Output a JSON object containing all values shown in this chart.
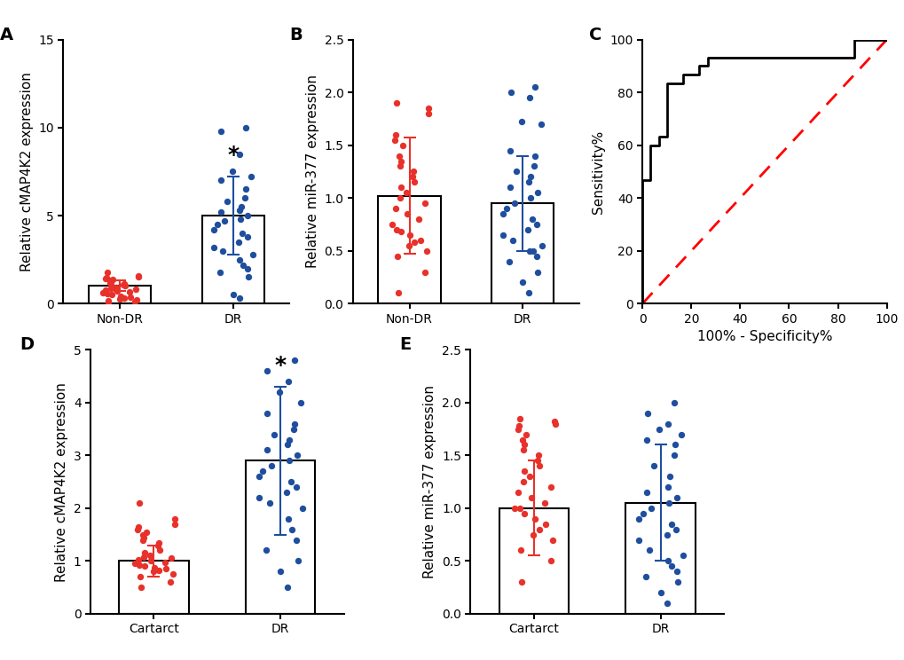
{
  "panel_A": {
    "ylabel": "Relative cMAP4K2 expression",
    "categories": [
      "Non-DR",
      "DR"
    ],
    "bar_means": [
      1.0,
      5.0
    ],
    "bar_errors": [
      0.3,
      2.2
    ],
    "ylim": [
      0,
      15
    ],
    "yticks": [
      0,
      5,
      10,
      15
    ],
    "colors": [
      "#E8312A",
      "#1F4E9E"
    ],
    "star_text": "*",
    "nondr_dots": [
      0.05,
      0.1,
      0.15,
      0.2,
      0.25,
      0.3,
      0.35,
      0.4,
      0.5,
      0.55,
      0.6,
      0.65,
      0.7,
      0.75,
      0.8,
      0.85,
      0.9,
      0.95,
      1.0,
      1.05,
      1.1,
      1.15,
      1.2,
      1.3,
      1.35,
      1.4,
      1.45,
      1.5,
      1.55,
      1.8
    ],
    "dr_dots": [
      0.3,
      0.5,
      1.5,
      1.8,
      2.0,
      2.2,
      2.5,
      2.8,
      3.0,
      3.2,
      3.5,
      3.8,
      4.0,
      4.2,
      4.5,
      4.7,
      4.8,
      5.0,
      5.2,
      5.3,
      5.5,
      5.8,
      6.0,
      6.5,
      7.0,
      7.2,
      7.5,
      8.5,
      9.8,
      10.0
    ]
  },
  "panel_B": {
    "ylabel": "Relative miR-377 expression",
    "categories": [
      "Non-DR",
      "DR"
    ],
    "bar_means": [
      1.02,
      0.95
    ],
    "bar_errors": [
      0.55,
      0.45
    ],
    "ylim": [
      0.0,
      2.5
    ],
    "yticks": [
      0.0,
      0.5,
      1.0,
      1.5,
      2.0,
      2.5
    ],
    "colors": [
      "#E8312A",
      "#1F4E9E"
    ],
    "nondr_dots": [
      0.1,
      0.3,
      0.45,
      0.5,
      0.55,
      0.58,
      0.6,
      0.65,
      0.68,
      0.7,
      0.75,
      0.8,
      0.85,
      0.9,
      0.95,
      1.0,
      1.05,
      1.1,
      1.15,
      1.2,
      1.25,
      1.3,
      1.35,
      1.4,
      1.5,
      1.55,
      1.6,
      1.8,
      1.85,
      1.9
    ],
    "dr_dots": [
      0.1,
      0.2,
      0.3,
      0.4,
      0.45,
      0.5,
      0.5,
      0.55,
      0.6,
      0.65,
      0.7,
      0.75,
      0.8,
      0.85,
      0.9,
      0.95,
      1.0,
      1.05,
      1.1,
      1.15,
      1.2,
      1.25,
      1.3,
      1.4,
      1.45,
      1.7,
      1.72,
      1.95,
      2.0,
      2.05
    ]
  },
  "panel_C": {
    "xlabel": "100% - Specificity%",
    "ylabel": "Sensitivity%",
    "roc_x": [
      0,
      0,
      3.3,
      3.3,
      6.7,
      6.7,
      10.0,
      10.0,
      16.7,
      16.7,
      23.3,
      23.3,
      26.7,
      26.7,
      30.0,
      86.7,
      86.7,
      100,
      100
    ],
    "roc_y": [
      0,
      46.7,
      46.7,
      60.0,
      60.0,
      63.3,
      63.3,
      83.3,
      83.3,
      86.7,
      86.7,
      90.0,
      90.0,
      93.3,
      93.3,
      93.3,
      100,
      100,
      100
    ],
    "xlim": [
      0,
      100
    ],
    "ylim": [
      0,
      100
    ],
    "xticks": [
      0,
      20,
      40,
      60,
      80,
      100
    ],
    "yticks": [
      0,
      20,
      40,
      60,
      80,
      100
    ]
  },
  "panel_D": {
    "ylabel": "Relative cMAP4K2 expression",
    "categories": [
      "Cartarct",
      "DR"
    ],
    "bar_means": [
      1.0,
      2.9
    ],
    "bar_errors": [
      0.3,
      1.4
    ],
    "ylim": [
      0,
      5
    ],
    "yticks": [
      0,
      1,
      2,
      3,
      4,
      5
    ],
    "colors": [
      "#E8312A",
      "#1F4E9E"
    ],
    "star_text": "*",
    "cat_dots": [
      0.5,
      0.6,
      0.7,
      0.75,
      0.8,
      0.82,
      0.85,
      0.88,
      0.9,
      0.92,
      0.95,
      0.98,
      1.0,
      1.02,
      1.05,
      1.08,
      1.1,
      1.15,
      1.2,
      1.3,
      1.35,
      1.4,
      1.45,
      1.5,
      1.55,
      1.6,
      1.65,
      1.7,
      1.8,
      2.1
    ],
    "dr_dots": [
      0.5,
      0.8,
      1.0,
      1.2,
      1.4,
      1.6,
      1.8,
      2.0,
      2.1,
      2.2,
      2.3,
      2.4,
      2.5,
      2.6,
      2.7,
      2.8,
      2.9,
      3.0,
      3.1,
      3.2,
      3.3,
      3.4,
      3.5,
      3.6,
      3.8,
      4.0,
      4.2,
      4.4,
      4.6,
      4.8
    ]
  },
  "panel_E": {
    "ylabel": "Relative miR-377 expression",
    "categories": [
      "Cartarct",
      "DR"
    ],
    "bar_means": [
      1.0,
      1.05
    ],
    "bar_errors": [
      0.45,
      0.55
    ],
    "ylim": [
      0.0,
      2.5
    ],
    "yticks": [
      0.0,
      0.5,
      1.0,
      1.5,
      2.0,
      2.5
    ],
    "colors": [
      "#E8312A",
      "#1F4E9E"
    ],
    "cat_dots": [
      0.3,
      0.5,
      0.6,
      0.7,
      0.75,
      0.8,
      0.85,
      0.9,
      0.95,
      1.0,
      1.0,
      1.05,
      1.1,
      1.15,
      1.2,
      1.25,
      1.3,
      1.35,
      1.4,
      1.45,
      1.5,
      1.55,
      1.6,
      1.65,
      1.7,
      1.75,
      1.78,
      1.8,
      1.82,
      1.85
    ],
    "dr_dots": [
      0.1,
      0.2,
      0.3,
      0.35,
      0.4,
      0.45,
      0.5,
      0.55,
      0.6,
      0.7,
      0.75,
      0.8,
      0.85,
      0.9,
      0.95,
      1.0,
      1.05,
      1.1,
      1.15,
      1.2,
      1.3,
      1.4,
      1.5,
      1.6,
      1.65,
      1.7,
      1.75,
      1.8,
      1.9,
      2.0
    ]
  },
  "label_fontsize": 11,
  "tick_fontsize": 10,
  "panel_label_fontsize": 14,
  "dot_size": 28,
  "bar_color": "#FFFFFF",
  "bar_edgecolor": "#000000",
  "background_color": "#FFFFFF"
}
